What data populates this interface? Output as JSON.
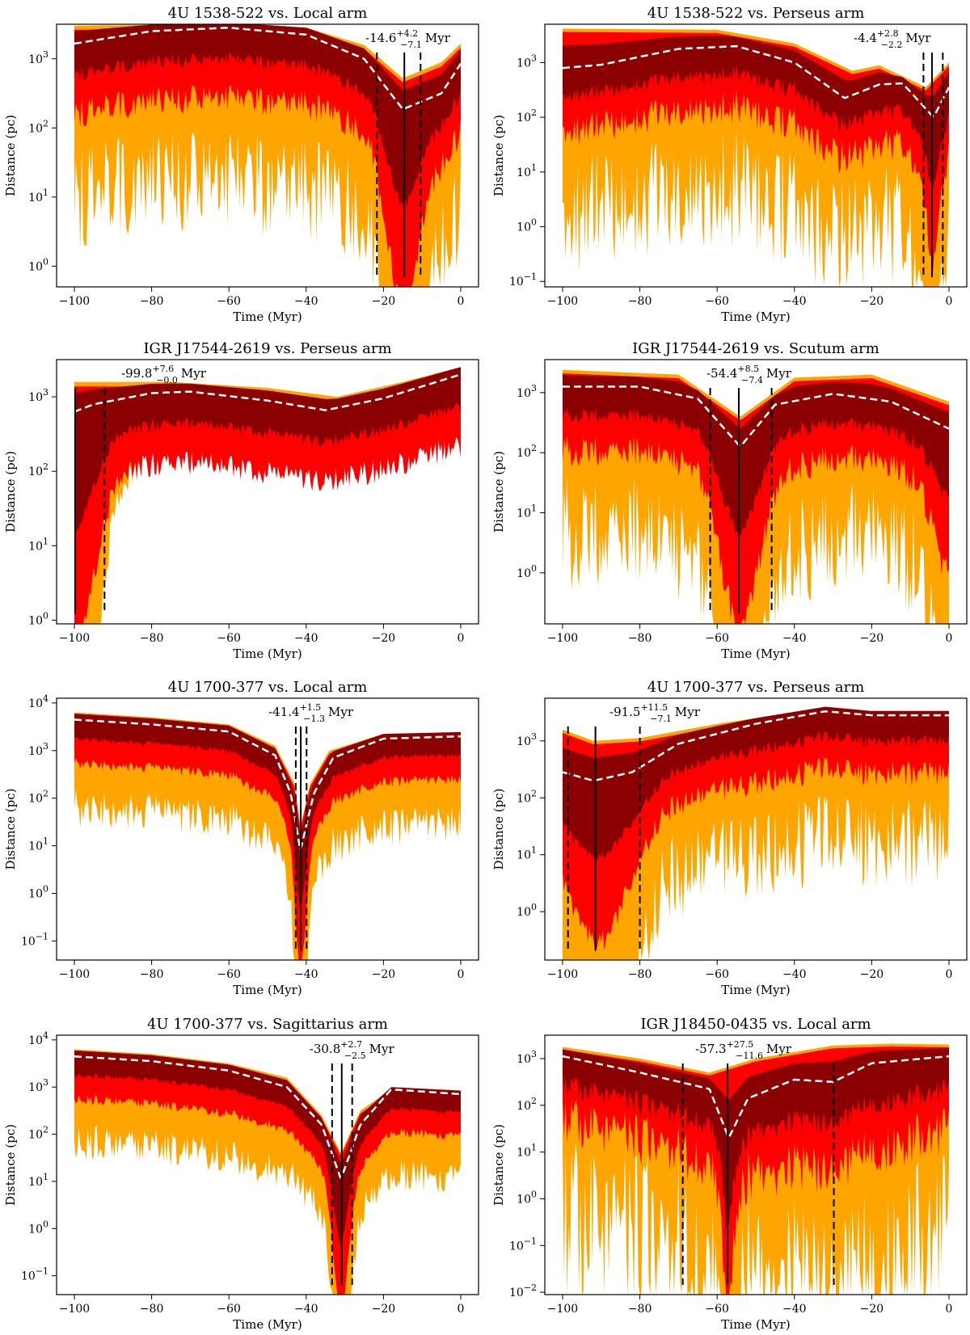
{
  "figure": {
    "colors": {
      "band99": "#FFA500",
      "band95": "#FF0000",
      "band68": "#8B0000",
      "median": "#FFFFFF",
      "markers": "#000000"
    }
  },
  "chart_data": [
    {
      "type": "area",
      "title": "4U 1538-522 vs. Local arm",
      "xlabel": "Time (Myr)",
      "ylabel": "Distance (pc)",
      "xlim": [
        -100,
        0
      ],
      "ylim_log10": [
        -0.3,
        3.5
      ],
      "yticks": [
        "10^0",
        "10^1",
        "10^2",
        "10^3"
      ],
      "xticks": [
        "−100",
        "−80",
        "−60",
        "−40",
        "−20",
        "0"
      ],
      "t_min": -14.6,
      "t_plus": "+4.2",
      "t_minus": "−7.1",
      "dashed_at": [
        -21.7,
        -10.4
      ],
      "annotation_main": "-14.6",
      "unit": "Myr"
    },
    {
      "type": "area",
      "title": "4U 1538-522 vs. Perseus arm",
      "xlabel": "Time (Myr)",
      "ylabel": "Distance (pc)",
      "xlim": [
        -100,
        0
      ],
      "ylim_log10": [
        -1.1,
        3.7
      ],
      "yticks": [
        "10^−1",
        "10^0",
        "10^1",
        "10^2",
        "10^3"
      ],
      "xticks": [
        "−100",
        "−80",
        "−60",
        "−40",
        "−20",
        "0"
      ],
      "t_min": -4.4,
      "t_plus": "+2.8",
      "t_minus": "−2.2",
      "dashed_at": [
        -6.6,
        -1.6
      ],
      "annotation_main": "-4.4",
      "unit": "Myr"
    },
    {
      "type": "area",
      "title": "IGR J17544-2619 vs. Perseus arm",
      "xlabel": "Time (Myr)",
      "ylabel": "Distance (pc)",
      "xlim": [
        -100,
        0
      ],
      "ylim_log10": [
        -0.05,
        3.5
      ],
      "yticks": [
        "10^0",
        "10^1",
        "10^2",
        "10^3"
      ],
      "xticks": [
        "−100",
        "−80",
        "−60",
        "−40",
        "−20",
        "0"
      ],
      "t_min": -99.8,
      "t_plus": "+7.6",
      "t_minus": "−0.0",
      "dashed_at": [
        -92.2
      ],
      "annotation_main": "-99.8",
      "unit": "Myr"
    },
    {
      "type": "area",
      "title": "IGR J17544-2619 vs. Scutum arm",
      "xlabel": "Time (Myr)",
      "ylabel": "Distance (pc)",
      "xlim": [
        -100,
        0
      ],
      "ylim_log10": [
        -0.85,
        3.55
      ],
      "yticks": [
        "10^0",
        "10^1",
        "10^2",
        "10^3"
      ],
      "xticks": [
        "−100",
        "−80",
        "−60",
        "−40",
        "−20",
        "0"
      ],
      "t_min": -54.4,
      "t_plus": "+8.5",
      "t_minus": "−7.4",
      "dashed_at": [
        -61.8,
        -45.9
      ],
      "annotation_main": "-54.4",
      "unit": "Myr"
    },
    {
      "type": "area",
      "title": "4U 1700-377 vs. Local arm",
      "xlabel": "Time (Myr)",
      "ylabel": "Distance (pc)",
      "xlim": [
        -100,
        0
      ],
      "ylim_log10": [
        -1.4,
        4.1
      ],
      "yticks": [
        "10^−1",
        "10^0",
        "10^1",
        "10^2",
        "10^3",
        "10^4"
      ],
      "xticks": [
        "−100",
        "−80",
        "−60",
        "−40",
        "−20",
        "0"
      ],
      "t_min": -41.4,
      "t_plus": "+1.5",
      "t_minus": "−1.3",
      "dashed_at": [
        -42.7,
        -39.9
      ],
      "annotation_main": "-41.4",
      "unit": "Myr"
    },
    {
      "type": "area",
      "title": "4U 1700-377 vs. Perseus arm",
      "xlabel": "Time (Myr)",
      "ylabel": "Distance (pc)",
      "xlim": [
        -100,
        0
      ],
      "ylim_log10": [
        -0.85,
        3.75
      ],
      "yticks": [
        "10^0",
        "10^1",
        "10^2",
        "10^3"
      ],
      "xticks": [
        "−100",
        "−80",
        "−60",
        "−40",
        "−20",
        "0"
      ],
      "t_min": -91.5,
      "t_plus": "+11.5",
      "t_minus": "−7.1",
      "dashed_at": [
        -98.6,
        -80.0
      ],
      "annotation_main": "-91.5",
      "unit": "Myr"
    },
    {
      "type": "area",
      "title": "4U 1700-377 vs. Sagittarius arm",
      "xlabel": "Time (Myr)",
      "ylabel": "Distance (pc)",
      "xlim": [
        -100,
        0
      ],
      "ylim_log10": [
        -1.4,
        4.1
      ],
      "yticks": [
        "10^−1",
        "10^0",
        "10^1",
        "10^2",
        "10^3",
        "10^4"
      ],
      "xticks": [
        "−100",
        "−80",
        "−60",
        "−40",
        "−20",
        "0"
      ],
      "t_min": -30.8,
      "t_plus": "+2.7",
      "t_minus": "−2.5",
      "dashed_at": [
        -33.3,
        -28.1
      ],
      "annotation_main": "-30.8",
      "unit": "Myr"
    },
    {
      "type": "area",
      "title": "IGR J18450-0435 vs. Local arm",
      "xlabel": "Time (Myr)",
      "ylabel": "Distance (pc)",
      "xlim": [
        -100,
        0
      ],
      "ylim_log10": [
        -2.05,
        3.5
      ],
      "yticks": [
        "10^−2",
        "10^−1",
        "10^0",
        "10^1",
        "10^2",
        "10^3"
      ],
      "xticks": [
        "−100",
        "−80",
        "−60",
        "−40",
        "−20",
        "0"
      ],
      "t_min": -57.3,
      "t_plus": "+27.5",
      "t_minus": "−11.6",
      "dashed_at": [
        -68.9,
        -29.8
      ],
      "annotation_main": "-57.3",
      "unit": "Myr"
    }
  ]
}
